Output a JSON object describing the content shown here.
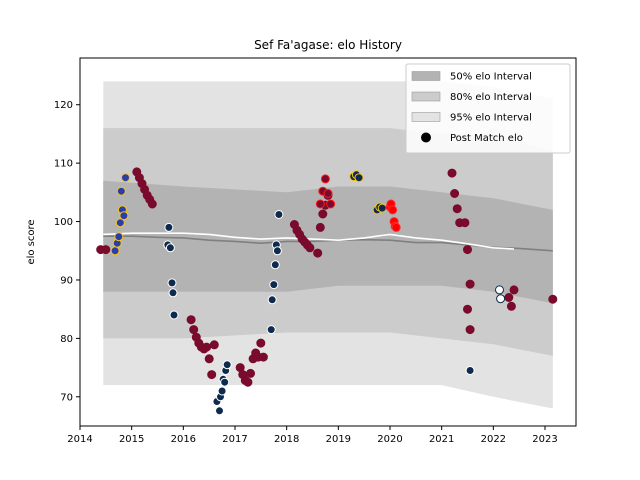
{
  "chart_data": {
    "type": "scatter",
    "title": "Sef Fa'agase: elo History",
    "xlabel": "",
    "ylabel": "elo score",
    "xlim": [
      2014.0,
      2023.6
    ],
    "ylim": [
      65,
      128
    ],
    "x_ticks": [
      2014,
      2015,
      2016,
      2017,
      2018,
      2019,
      2020,
      2021,
      2022,
      2023
    ],
    "x_tick_labels": [
      "2014",
      "2015",
      "2016",
      "2017",
      "2018",
      "2019",
      "2020",
      "2021",
      "2022",
      "2023"
    ],
    "y_ticks": [
      70,
      80,
      90,
      100,
      110,
      120
    ],
    "y_tick_labels": [
      "70",
      "80",
      "90",
      "100",
      "110",
      "120"
    ],
    "legend_position": "top-right",
    "legend": [
      {
        "label": "50% elo Interval",
        "color": "#b3b3b3",
        "kind": "band"
      },
      {
        "label": "80% elo Interval",
        "color": "#cccccc",
        "kind": "band"
      },
      {
        "label": "95% elo Interval",
        "color": "#e3e3e3",
        "kind": "band"
      },
      {
        "label": "Post Match elo",
        "color": "#000000",
        "kind": "point"
      }
    ],
    "bands": {
      "x": [
        2014.45,
        2016.0,
        2018.0,
        2019.0,
        2020.0,
        2021.0,
        2022.0,
        2023.15
      ],
      "p95_upper": [
        124,
        124,
        124,
        124,
        124,
        124,
        123,
        121
      ],
      "p95_lower": [
        72,
        72,
        72,
        72,
        72,
        72,
        70,
        68
      ],
      "p80_upper": [
        116,
        116,
        116,
        116,
        116,
        115,
        115,
        112
      ],
      "p80_lower": [
        80,
        80,
        81,
        81,
        81,
        80,
        79,
        77
      ],
      "p50_upper": [
        107,
        106,
        105,
        106,
        106,
        105,
        104,
        102
      ],
      "p50_lower": [
        88,
        88,
        88,
        89,
        89,
        89,
        88,
        86
      ]
    },
    "series": [
      {
        "kind": "line",
        "color": "#808080",
        "x": [
          2014.45,
          2015.0,
          2015.5,
          2016.0,
          2016.5,
          2017.0,
          2017.5,
          2018.0,
          2018.5,
          2019.0,
          2019.5,
          2020.0,
          2020.5,
          2021.0,
          2021.5,
          2022.0,
          2022.5,
          2023.15
        ],
        "values": [
          97.5,
          97.5,
          97.3,
          97.2,
          96.8,
          96.6,
          96.3,
          96.6,
          96.6,
          96.8,
          96.9,
          96.8,
          96.4,
          96.4,
          96.0,
          95.6,
          95.4,
          95.0
        ]
      },
      {
        "kind": "line",
        "color": "#ffffff",
        "x": [
          2014.45,
          2015.0,
          2015.5,
          2016.0,
          2016.5,
          2017.0,
          2017.5,
          2018.0,
          2018.5,
          2019.0,
          2019.5,
          2020.0,
          2020.5,
          2021.0,
          2021.5,
          2022.0,
          2022.4
        ],
        "values": [
          97.8,
          98.0,
          98.0,
          98.0,
          97.8,
          97.3,
          97.0,
          97.2,
          97.0,
          96.8,
          97.2,
          97.8,
          97.2,
          96.8,
          96.2,
          95.5,
          95.3
        ]
      },
      {
        "kind": "points",
        "fill": "#7a0b2c",
        "edge": "#7a0b2c",
        "x": [
          2014.4,
          2014.5,
          2015.1,
          2015.15,
          2015.2,
          2015.25,
          2015.3,
          2015.35,
          2015.4,
          2016.15,
          2016.2,
          2016.25,
          2016.3,
          2016.35,
          2016.4,
          2016.45,
          2016.5,
          2016.55,
          2016.6,
          2017.1,
          2017.15,
          2017.2,
          2017.25,
          2017.3,
          2017.35,
          2017.4,
          2017.45,
          2017.5,
          2017.55,
          2018.15,
          2018.2,
          2018.25,
          2018.3,
          2018.35,
          2018.4,
          2018.45,
          2018.6,
          2018.65,
          2018.7,
          2018.75,
          2018.8,
          2021.2,
          2021.25,
          2021.3,
          2021.35,
          2021.45,
          2021.5,
          2021.5,
          2021.55,
          2021.55,
          2022.3,
          2022.35,
          2022.4,
          2023.15
        ],
        "values": [
          95.2,
          95.2,
          108.5,
          107.5,
          106.5,
          105.5,
          104.5,
          103.8,
          103.0,
          83.2,
          81.5,
          80.2,
          79.2,
          78.5,
          78.2,
          78.5,
          76.5,
          73.8,
          78.9,
          75.0,
          73.8,
          72.8,
          72.5,
          74.0,
          76.5,
          77.5,
          76.8,
          79.2,
          76.8,
          99.5,
          98.5,
          97.8,
          97.0,
          96.5,
          96.0,
          95.5,
          94.6,
          99.0,
          101.3,
          102.8,
          104.5,
          108.3,
          104.8,
          102.2,
          99.8,
          99.8,
          95.2,
          85.0,
          81.5,
          89.3,
          87.0,
          85.5,
          88.3,
          86.7
        ]
      },
      {
        "kind": "points",
        "fill": "#7a0b2c",
        "edge": "#ff1a1a",
        "x": [
          2018.65,
          2018.7,
          2018.75,
          2018.8,
          2018.85
        ],
        "values": [
          103.0,
          105.2,
          107.3,
          104.8,
          103.0
        ]
      },
      {
        "kind": "points",
        "fill": "#0c2b4e",
        "edge": "#ffffff",
        "x": [
          2015.7,
          2015.72,
          2015.75,
          2015.78,
          2015.8,
          2015.82,
          2016.65,
          2016.7,
          2016.72,
          2016.75,
          2016.77,
          2016.8,
          2016.82,
          2016.85,
          2017.7,
          2017.72,
          2017.75,
          2017.78,
          2017.8,
          2017.82,
          2017.85,
          2021.55
        ],
        "values": [
          96.0,
          99.0,
          95.5,
          89.5,
          87.8,
          84.0,
          69.2,
          67.6,
          70.0,
          71.0,
          73.0,
          72.5,
          74.5,
          75.5,
          81.5,
          86.6,
          89.2,
          92.6,
          96.0,
          95.0,
          101.2,
          74.5
        ]
      },
      {
        "kind": "points",
        "fill": "#2b3ea8",
        "edge": "#f5c518",
        "x": [
          2014.68,
          2014.72,
          2014.75,
          2014.78,
          2014.8,
          2014.82,
          2014.85,
          2014.88
        ],
        "values": [
          95.0,
          96.3,
          97.4,
          99.8,
          105.2,
          102.0,
          101.0,
          107.5
        ]
      },
      {
        "kind": "points",
        "fill": "#0c2b4e",
        "edge": "#f5c518",
        "x": [
          2019.3,
          2019.35,
          2019.4,
          2019.75,
          2019.8,
          2019.85
        ],
        "values": [
          107.7,
          108.0,
          107.5,
          102.0,
          102.5,
          102.3
        ]
      },
      {
        "kind": "points",
        "fill": "#ff0000",
        "edge": "#ff2a2a",
        "x": [
          2020.0,
          2020.02,
          2020.05,
          2020.08,
          2020.1,
          2020.12
        ],
        "values": [
          102.5,
          103.0,
          102.0,
          100.0,
          99.2,
          99.0
        ]
      },
      {
        "kind": "points",
        "fill": "#ffffff",
        "edge": "#0c2b4e",
        "x": [
          2022.12,
          2022.14
        ],
        "values": [
          88.3,
          86.8
        ]
      }
    ]
  }
}
